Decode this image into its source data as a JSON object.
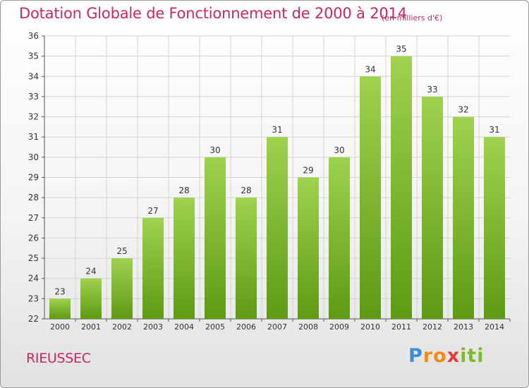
{
  "header": {
    "title": "Dotation Globale de Fonctionnement de 2000 à 2014",
    "subtitle": "(en milliers d'€)"
  },
  "footer": {
    "commune": "RIEUSSEC",
    "logo_text": "Proxiti"
  },
  "colors": {
    "title": "#c8285a",
    "bar_top": "#9fd24e",
    "bar_bottom": "#5e9a12",
    "grid": "#d3d3d3",
    "axis_text": "#333333"
  },
  "chart_data": {
    "type": "bar",
    "title": "Dotation Globale de Fonctionnement de 2000 à 2014",
    "subtitle": "(en milliers d'€)",
    "xlabel": "",
    "ylabel": "",
    "categories": [
      "2000",
      "2001",
      "2002",
      "2003",
      "2004",
      "2005",
      "2006",
      "2007",
      "2008",
      "2009",
      "2010",
      "2011",
      "2012",
      "2013",
      "2014"
    ],
    "values": [
      23,
      24,
      25,
      27,
      28,
      30,
      28,
      31,
      29,
      30,
      34,
      35,
      33,
      32,
      31
    ],
    "ylim": [
      22,
      36
    ],
    "yticks": [
      22,
      23,
      24,
      25,
      26,
      27,
      28,
      29,
      30,
      31,
      32,
      33,
      34,
      35,
      36
    ],
    "grid": true,
    "legend": "none",
    "data_labels": true
  }
}
